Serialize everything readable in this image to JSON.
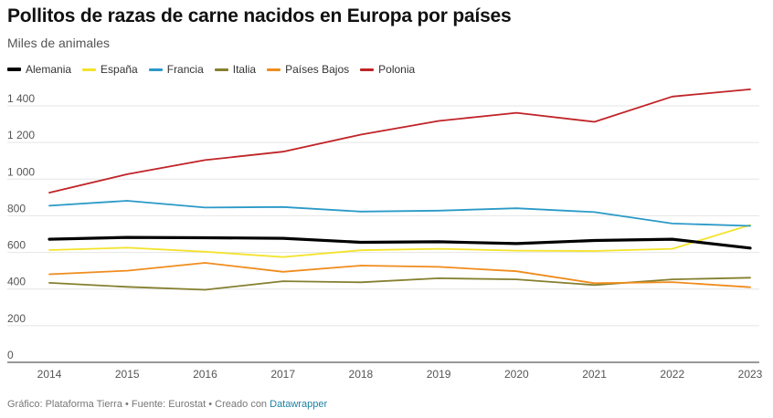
{
  "title": "Pollitos de razas de carne nacidos en Europa por países",
  "subtitle": "Miles de animales",
  "footer": {
    "prefix": "Gráfico: Plataforma Tierra • Fuente: Eurostat • Creado con",
    "link": "Datawrapper"
  },
  "chart_data": {
    "type": "line",
    "title": "Pollitos de razas de carne nacidos en Europa por países",
    "subtitle": "Miles de animales",
    "x": [
      "2014",
      "2015",
      "2016",
      "2017",
      "2018",
      "2019",
      "2020",
      "2021",
      "2022",
      "2023"
    ],
    "x_tick_labels": [
      "2014",
      "2015",
      "2016",
      "2017",
      "2018",
      "2019",
      "2020",
      "2021",
      "2022",
      "2023"
    ],
    "y_tick_labels": [
      "0",
      "200",
      "400",
      "600",
      "800",
      "1 000",
      "1 200",
      "1 400"
    ],
    "y_ticks": [
      0,
      200,
      400,
      600,
      800,
      1000,
      1200,
      1400
    ],
    "ylim": [
      0,
      1400
    ],
    "grid": true,
    "legend_position": "top-left",
    "series": [
      {
        "name": "Alemania",
        "color": "#000000",
        "values": [
          672,
          682,
          680,
          677,
          655,
          658,
          648,
          665,
          672,
          624
        ]
      },
      {
        "name": "España",
        "color": "#f3e32b",
        "values": [
          613,
          626,
          604,
          575,
          612,
          620,
          610,
          608,
          620,
          750
        ]
      },
      {
        "name": "Francia",
        "color": "#2b9ac7",
        "values": [
          855,
          882,
          845,
          848,
          823,
          828,
          841,
          820,
          758,
          745
        ]
      },
      {
        "name": "Italia",
        "color": "#857f2f",
        "values": [
          434,
          412,
          396,
          443,
          437,
          459,
          453,
          422,
          453,
          462
        ]
      },
      {
        "name": "Países Bajos",
        "color": "#f08c1d",
        "values": [
          481,
          500,
          543,
          494,
          528,
          521,
          497,
          432,
          438,
          410
        ]
      },
      {
        "name": "Polonia",
        "color": "#c02327",
        "values": [
          926,
          1027,
          1104,
          1150,
          1243,
          1318,
          1362,
          1313,
          1451,
          1490
        ]
      }
    ]
  }
}
